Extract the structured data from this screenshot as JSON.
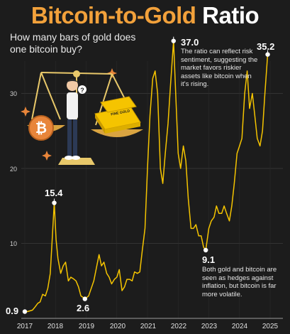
{
  "header": {
    "title_part1": "Bitcoin-to-Gold",
    "title_part2": "Ratio",
    "subtitle": "How many bars of gold does one bitcoin buy?"
  },
  "colors": {
    "background": "#1c1c1c",
    "accent_orange": "#f2a13b",
    "line": "#f5c400",
    "grid": "#4a4a4a"
  },
  "illustration": {
    "icons": [
      "balance-scale-icon",
      "bitcoin-coin-icon",
      "gold-bar-icon",
      "thinking-person-icon"
    ],
    "gold_bar_text": "FINE GOLD"
  },
  "annotations": [
    {
      "id": "start",
      "label": "0.9",
      "x": 2017.0,
      "y": 0.9
    },
    {
      "id": "peak2017",
      "label": "15.4",
      "x": 2017.96,
      "y": 15.4
    },
    {
      "id": "low2019",
      "label": "2.6",
      "x": 2018.96,
      "y": 2.6
    },
    {
      "id": "peak2021",
      "label": "37.0",
      "x": 2021.85,
      "y": 37.0,
      "note": "The ratio can reflect risk sentiment, suggesting the market favors riskier assets like bitcoin when it's rising."
    },
    {
      "id": "low2022",
      "label": "9.1",
      "x": 2022.9,
      "y": 9.1,
      "note": "Both gold and bitcoin are seen as hedges against inflation, but bitcoin is far more volatile."
    },
    {
      "id": "end",
      "label": "35.2",
      "x": 2024.92,
      "y": 35.2
    }
  ],
  "chart_data": {
    "type": "line",
    "title": "Bitcoin-to-Gold Ratio",
    "xlim": [
      2017.0,
      2025.0
    ],
    "ylim": [
      0,
      40
    ],
    "x_ticks": [
      2017,
      2018,
      2019,
      2020,
      2021,
      2022,
      2023,
      2024,
      2025
    ],
    "y_ticks": [
      10,
      20,
      30
    ],
    "grid": true,
    "series": [
      {
        "x": [
          2017.0,
          2017.08,
          2017.17,
          2017.25,
          2017.33,
          2017.42,
          2017.5,
          2017.58,
          2017.67,
          2017.75,
          2017.83,
          2017.9,
          2017.96,
          2018.02,
          2018.08,
          2018.17,
          2018.25,
          2018.33,
          2018.42,
          2018.5,
          2018.58,
          2018.67,
          2018.75,
          2018.83,
          2018.9,
          2018.96,
          2019.08,
          2019.25,
          2019.42,
          2019.5,
          2019.58,
          2019.67,
          2019.75,
          2019.83,
          2019.92,
          2020.0,
          2020.08,
          2020.17,
          2020.25,
          2020.33,
          2020.42,
          2020.5,
          2020.58,
          2020.67,
          2020.75,
          2020.83,
          2020.92,
          2021.0,
          2021.08,
          2021.17,
          2021.25,
          2021.33,
          2021.42,
          2021.5,
          2021.58,
          2021.67,
          2021.75,
          2021.85,
          2021.92,
          2022.0,
          2022.08,
          2022.17,
          2022.25,
          2022.33,
          2022.42,
          2022.5,
          2022.58,
          2022.67,
          2022.75,
          2022.83,
          2022.9,
          2023.0,
          2023.08,
          2023.17,
          2023.25,
          2023.33,
          2023.42,
          2023.5,
          2023.58,
          2023.67,
          2023.75,
          2023.83,
          2023.92,
          2024.0,
          2024.08,
          2024.17,
          2024.25,
          2024.33,
          2024.42,
          2024.5,
          2024.58,
          2024.67,
          2024.75,
          2024.83,
          2024.92
        ],
        "y": [
          0.9,
          0.9,
          1.0,
          1.1,
          1.5,
          2.0,
          2.2,
          3.2,
          3.0,
          4.0,
          6.0,
          11.0,
          15.4,
          10.5,
          8.0,
          6.0,
          7.0,
          7.5,
          5.0,
          5.5,
          5.3,
          5.0,
          4.2,
          3.0,
          2.8,
          2.6,
          3.0,
          5.0,
          8.5,
          7.0,
          7.5,
          6.0,
          5.5,
          4.6,
          5.2,
          5.5,
          6.5,
          3.7,
          4.2,
          5.2,
          5.2,
          5.0,
          6.2,
          6.0,
          6.2,
          9.0,
          12.0,
          20.0,
          27.0,
          32.0,
          33.0,
          30.0,
          20.0,
          18.0,
          22.0,
          26.0,
          31.0,
          37.0,
          30.0,
          22.0,
          20.0,
          23.0,
          21.0,
          16.0,
          12.0,
          12.0,
          12.5,
          11.0,
          11.0,
          9.5,
          9.1,
          12.0,
          13.0,
          13.5,
          15.0,
          14.0,
          14.0,
          15.0,
          14.0,
          13.0,
          15.0,
          18.0,
          22.0,
          23.0,
          24.0,
          30.0,
          33.0,
          28.0,
          30.0,
          27.0,
          24.0,
          23.0,
          25.0,
          30.0,
          35.2
        ]
      }
    ]
  }
}
